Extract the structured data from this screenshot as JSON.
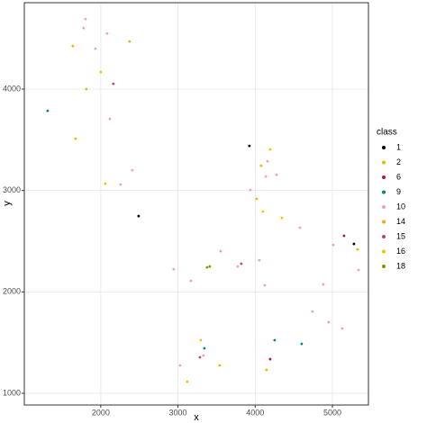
{
  "chart_data": {
    "type": "scatter",
    "x_label": "x",
    "y_label": "y",
    "legend_title": "class",
    "legend": "right",
    "grid": true,
    "xlim": [
      1010,
      5467
    ],
    "ylim": [
      885,
      4852
    ],
    "xticks": [
      2000,
      3000,
      4000,
      5000
    ],
    "yticks": [
      1000,
      2000,
      3000,
      4000
    ],
    "series": [
      {
        "name": "1",
        "color": "#000000",
        "x": [
          2490,
          3925,
          5279
        ],
        "y": [
          2748,
          3440,
          2473
        ]
      },
      {
        "name": "2",
        "color": "#E7B800",
        "x": [
          1638,
          1813,
          1673,
          4077,
          4019,
          5326,
          3540,
          4147
        ],
        "y": [
          4425,
          4000,
          3511,
          3245,
          2917,
          2420,
          1275,
          1231
        ]
      },
      {
        "name": "6",
        "color": "#B2182B",
        "x": [
          5151,
          4194
        ],
        "y": [
          2553,
          1337
        ]
      },
      {
        "name": "9",
        "color": "#00897B",
        "x": [
          1312,
          4602,
          4252,
          3342
        ],
        "y": [
          3786,
          1488,
          1524,
          1444
        ]
      },
      {
        "name": "10",
        "color": "#F4A0A8",
        "x": [
          1802,
          1778,
          2082,
          1930,
          2117,
          2408,
          2257,
          4160,
          4277,
          4137,
          3937,
          4579,
          5010,
          5338,
          3552,
          3774,
          4054,
          2945,
          3167,
          4124,
          4882,
          4742,
          4952,
          5127,
          3330,
          3027
        ],
        "y": [
          4691,
          4602,
          4549,
          4398,
          3706,
          3200,
          3059,
          3289,
          3156,
          3138,
          3005,
          2633,
          2464,
          2216,
          2402,
          2251,
          2313,
          2224,
          2109,
          2065,
          2074,
          1807,
          1701,
          1639,
          1373,
          1275
        ]
      },
      {
        "name": "14",
        "color": "#F5A623",
        "x": [
          2373
        ],
        "y": [
          4469
        ]
      },
      {
        "name": "15",
        "color": "#C2407A",
        "x": [
          2163,
          3820,
          3284
        ],
        "y": [
          4052,
          2278,
          1355
        ]
      },
      {
        "name": "16",
        "color": "#F2C500",
        "x": [
          2000,
          2058,
          4194,
          4100,
          4346,
          3295,
          3120
        ],
        "y": [
          4168,
          3067,
          3405,
          2792,
          2730,
          1524,
          1115
        ]
      },
      {
        "name": "18",
        "color": "#7A9A01",
        "x": [
          3412,
          3377
        ],
        "y": [
          2251,
          2242
        ]
      }
    ]
  }
}
